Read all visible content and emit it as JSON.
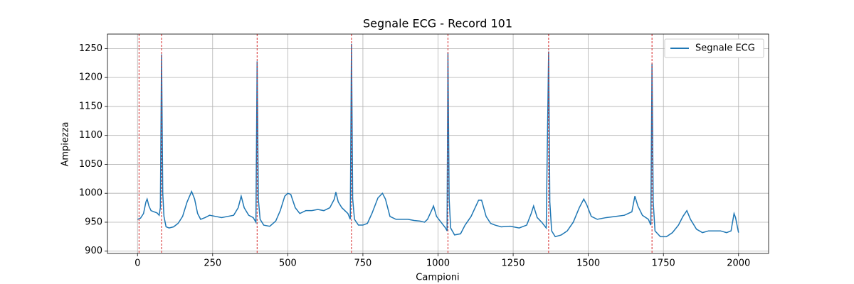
{
  "chart_data": {
    "type": "line",
    "title": "Segnale ECG - Record 101",
    "x_label": "Campioni",
    "y_label": "Ampiezza",
    "xlim": [
      -100,
      2100
    ],
    "ylim": [
      896,
      1275
    ],
    "xticks": [
      0,
      250,
      500,
      750,
      1000,
      1250,
      1500,
      1750,
      2000
    ],
    "yticks": [
      900,
      950,
      1000,
      1050,
      1100,
      1150,
      1200,
      1250
    ],
    "grid": true,
    "legend": "upper right",
    "peaks": [
      5,
      80,
      398,
      712,
      1033,
      1368,
      1712
    ],
    "peak_color": "#d62728",
    "x": [
      0,
      10,
      20,
      28,
      32,
      38,
      45,
      55,
      65,
      72,
      76,
      80,
      84,
      88,
      95,
      105,
      120,
      135,
      150,
      165,
      180,
      190,
      200,
      210,
      225,
      240,
      260,
      280,
      300,
      320,
      335,
      345,
      355,
      370,
      385,
      394,
      398,
      402,
      408,
      420,
      440,
      460,
      475,
      490,
      500,
      510,
      525,
      540,
      560,
      580,
      600,
      620,
      640,
      655,
      660,
      668,
      680,
      700,
      708,
      712,
      716,
      722,
      735,
      750,
      765,
      780,
      800,
      815,
      825,
      840,
      860,
      880,
      900,
      920,
      940,
      955,
      965,
      980,
      985,
      995,
      1010,
      1025,
      1030,
      1033,
      1037,
      1042,
      1055,
      1075,
      1090,
      1110,
      1135,
      1145,
      1160,
      1175,
      1190,
      1210,
      1240,
      1270,
      1295,
      1310,
      1318,
      1330,
      1345,
      1360,
      1368,
      1372,
      1378,
      1390,
      1410,
      1430,
      1450,
      1470,
      1485,
      1495,
      1510,
      1530,
      1560,
      1590,
      1620,
      1645,
      1655,
      1665,
      1680,
      1700,
      1708,
      1712,
      1716,
      1722,
      1740,
      1760,
      1780,
      1800,
      1815,
      1828,
      1840,
      1860,
      1880,
      1900,
      1920,
      1940,
      1960,
      1975,
      1985,
      1990,
      2000
    ],
    "series": [
      {
        "name": "Segnale ECG",
        "color": "#1f77b4",
        "values": [
          955,
          957,
          965,
          985,
          990,
          978,
          970,
          968,
          966,
          962,
          975,
          1240,
          1000,
          960,
          942,
          940,
          942,
          948,
          960,
          985,
          1003,
          990,
          965,
          955,
          958,
          962,
          960,
          958,
          960,
          962,
          975,
          995,
          975,
          962,
          958,
          950,
          1228,
          990,
          955,
          945,
          943,
          952,
          970,
          995,
          1000,
          998,
          975,
          965,
          970,
          970,
          972,
          970,
          975,
          990,
          1002,
          985,
          975,
          965,
          955,
          1258,
          990,
          955,
          945,
          945,
          948,
          965,
          992,
          1000,
          990,
          960,
          955,
          955,
          955,
          953,
          952,
          950,
          955,
          972,
          978,
          960,
          950,
          940,
          935,
          1243,
          990,
          940,
          928,
          930,
          945,
          960,
          988,
          988,
          960,
          948,
          945,
          942,
          943,
          940,
          945,
          965,
          978,
          958,
          950,
          940,
          1245,
          985,
          935,
          925,
          928,
          935,
          950,
          975,
          990,
          980,
          960,
          955,
          958,
          960,
          962,
          968,
          995,
          978,
          962,
          955,
          945,
          1224,
          985,
          935,
          925,
          925,
          932,
          945,
          960,
          970,
          955,
          938,
          932,
          935,
          935,
          935,
          932,
          935,
          965,
          958,
          932
        ]
      }
    ]
  }
}
